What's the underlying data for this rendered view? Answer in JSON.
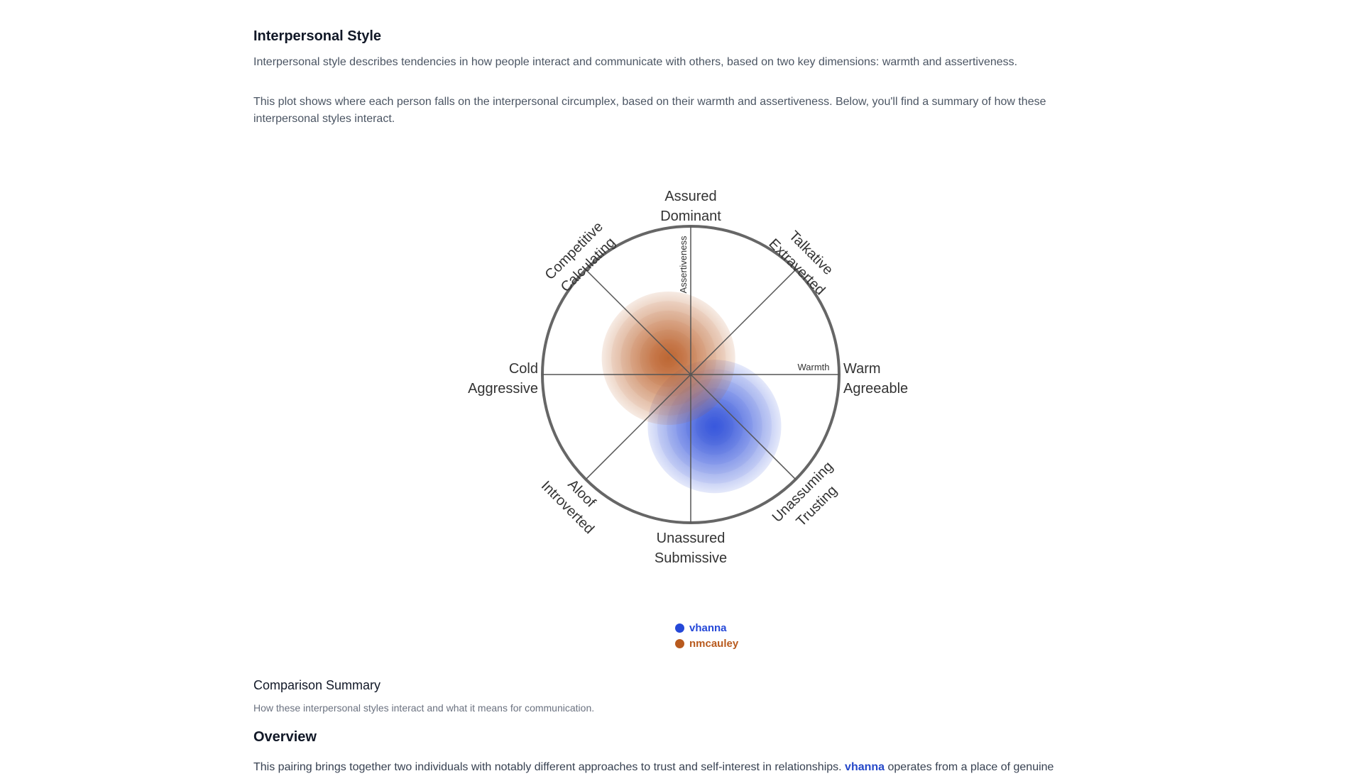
{
  "section": {
    "title": "Interpersonal Style",
    "description": "Interpersonal style describes tendencies in how people interact and communicate with others, based on two key dimensions: warmth and assertiveness.",
    "plot_description": "This plot shows where each person falls on the interpersonal circumplex, based on their warmth and assertiveness. Below, you'll find a summary of how these interpersonal styles interact."
  },
  "chart_data": {
    "type": "circumplex",
    "axes": {
      "x": "Warmth",
      "y": "Assertiveness",
      "xlim": [
        -1,
        1
      ],
      "ylim": [
        -1,
        1
      ]
    },
    "octants": [
      {
        "lines": [
          "Assured",
          "Dominant"
        ]
      },
      {
        "lines": [
          "Talkative",
          "Extraverted"
        ]
      },
      {
        "lines": [
          "Warm",
          "Agreeable"
        ]
      },
      {
        "lines": [
          "Unassuming",
          "Trusting"
        ]
      },
      {
        "lines": [
          "Unassured",
          "Submissive"
        ]
      },
      {
        "lines": [
          "Aloof",
          "Introverted"
        ]
      },
      {
        "lines": [
          "Cold",
          "Aggressive"
        ]
      },
      {
        "lines": [
          "Competitive",
          "Calculating"
        ]
      }
    ],
    "people": [
      {
        "name": "vhanna",
        "warmth": 0.16,
        "assertiveness": -0.35,
        "spread": 0.45,
        "color": "#2548d8"
      },
      {
        "name": "nmcauley",
        "warmth": -0.15,
        "assertiveness": 0.11,
        "spread": 0.45,
        "color": "#b85a1e"
      }
    ]
  },
  "summary": {
    "title": "Comparison Summary",
    "subtitle": "How these interpersonal styles interact and what it means for communication."
  },
  "overview": {
    "title": "Overview",
    "text_before": "This pairing brings together two individuals with notably different approaches to trust and self-interest in relationships. ",
    "person": "vhanna",
    "text_after": " operates from a place of genuine"
  }
}
